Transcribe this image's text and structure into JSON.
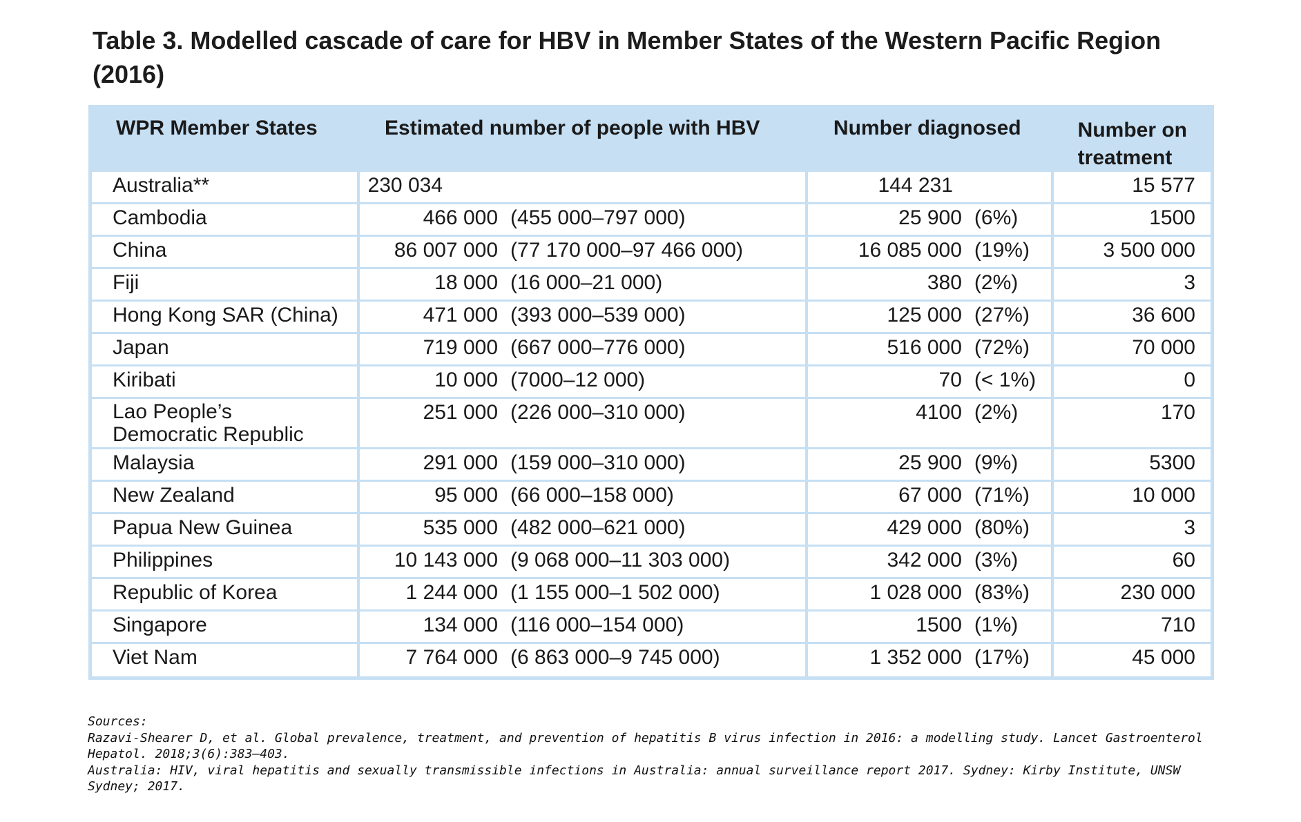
{
  "title": "Table 3. Modelled cascade of care for HBV in Member States of the Western Pacific Region (2016)",
  "table": {
    "headers": {
      "member_states": "WPR Member States",
      "estimated": "Estimated number of people with HBV",
      "diagnosed": "Number diagnosed",
      "treatment": "Number on treatment"
    },
    "rows": [
      {
        "state": "Australia**",
        "estimated": "230 034",
        "range": "",
        "diagnosed": "144 231",
        "pct": "",
        "treatment": "15 577"
      },
      {
        "state": "Cambodia",
        "estimated": "466 000",
        "range": "(455 000–797 000)",
        "diagnosed": "25 900",
        "pct": "(6%)",
        "treatment": "1500"
      },
      {
        "state": "China",
        "estimated": "86 007 000",
        "range": "(77 170 000–97 466 000)",
        "diagnosed": "16 085 000",
        "pct": "(19%)",
        "treatment": "3 500 000"
      },
      {
        "state": "Fiji",
        "estimated": "18 000",
        "range": "(16 000–21 000)",
        "diagnosed": "380",
        "pct": "(2%)",
        "treatment": "3"
      },
      {
        "state": "Hong Kong SAR (China)",
        "estimated": "471 000",
        "range": "(393 000–539 000)",
        "diagnosed": "125 000",
        "pct": "(27%)",
        "treatment": "36 600"
      },
      {
        "state": "Japan",
        "estimated": "719 000",
        "range": "(667 000–776 000)",
        "diagnosed": "516 000",
        "pct": "(72%)",
        "treatment": "70 000"
      },
      {
        "state": "Kiribati",
        "estimated": "10 000",
        "range": "(7000–12 000)",
        "diagnosed": "70",
        "pct": "(< 1%)",
        "treatment": "0"
      },
      {
        "state": "Lao People’s Democratic Republic",
        "estimated": "251 000",
        "range": "(226 000–310 000)",
        "diagnosed": "4100",
        "pct": "(2%)",
        "treatment": "170"
      },
      {
        "state": "Malaysia",
        "estimated": "291 000",
        "range": "(159 000–310 000)",
        "diagnosed": "25 900",
        "pct": "(9%)",
        "treatment": "5300"
      },
      {
        "state": "New Zealand",
        "estimated": "95 000",
        "range": "(66 000–158 000)",
        "diagnosed": "67 000",
        "pct": "(71%)",
        "treatment": "10 000"
      },
      {
        "state": "Papua New Guinea",
        "estimated": "535 000",
        "range": "(482 000–621 000)",
        "diagnosed": "429 000",
        "pct": "(80%)",
        "treatment": "3"
      },
      {
        "state": "Philippines",
        "estimated": "10 143 000",
        "range": "(9 068 000–11 303 000)",
        "diagnosed": "342 000",
        "pct": "(3%)",
        "treatment": "60"
      },
      {
        "state": "Republic of Korea",
        "estimated": "1 244 000",
        "range": "(1 155 000–1 502 000)",
        "diagnosed": "1 028 000",
        "pct": "(83%)",
        "treatment": "230 000"
      },
      {
        "state": "Singapore",
        "estimated": "134 000",
        "range": "(116 000–154 000)",
        "diagnosed": "1500",
        "pct": "(1%)",
        "treatment": "710"
      },
      {
        "state": "Viet Nam",
        "estimated": "7 764 000",
        "range": "(6 863 000–9 745 000)",
        "diagnosed": "1 352 000",
        "pct": "(17%)",
        "treatment": "45 000"
      }
    ]
  },
  "sources": {
    "heading": "Sources:",
    "lines": [
      "Razavi-Shearer D, et al. Global prevalence, treatment, and prevention of hepatitis B virus infection in 2016: a modelling study. Lancet Gastroenterol Hepatol. 2018;3(6):383–403.",
      "Australia: HIV, viral hepatitis and sexually transmissible infections in Australia: annual surveillance report 2017. Sydney: Kirby Institute, UNSW Sydney; 2017."
    ]
  },
  "colors": {
    "header_bg": "#c6dff3",
    "text": "#1a1a1a"
  }
}
